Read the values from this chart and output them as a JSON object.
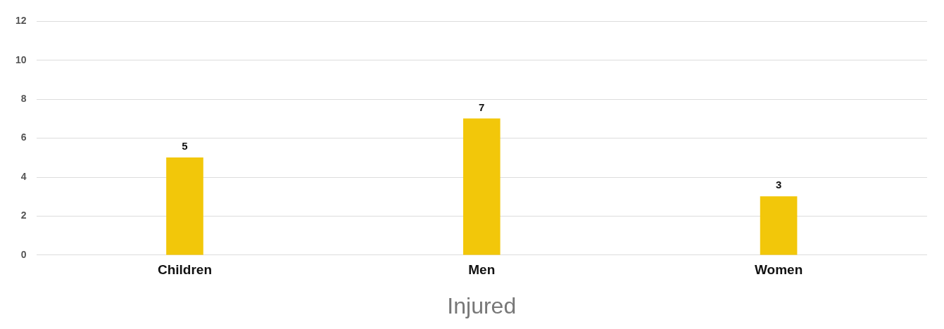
{
  "chart_data": {
    "type": "bar",
    "xlabel": "Injured",
    "categories": [
      "Children",
      "Men",
      "Women"
    ],
    "values": [
      5,
      7,
      3
    ],
    "color": "#f2c70a",
    "ylim": [
      0,
      12
    ],
    "yticks": [
      0,
      2,
      4,
      6,
      8,
      10,
      12
    ],
    "grid": "y",
    "data_labels": true,
    "legend": false
  }
}
